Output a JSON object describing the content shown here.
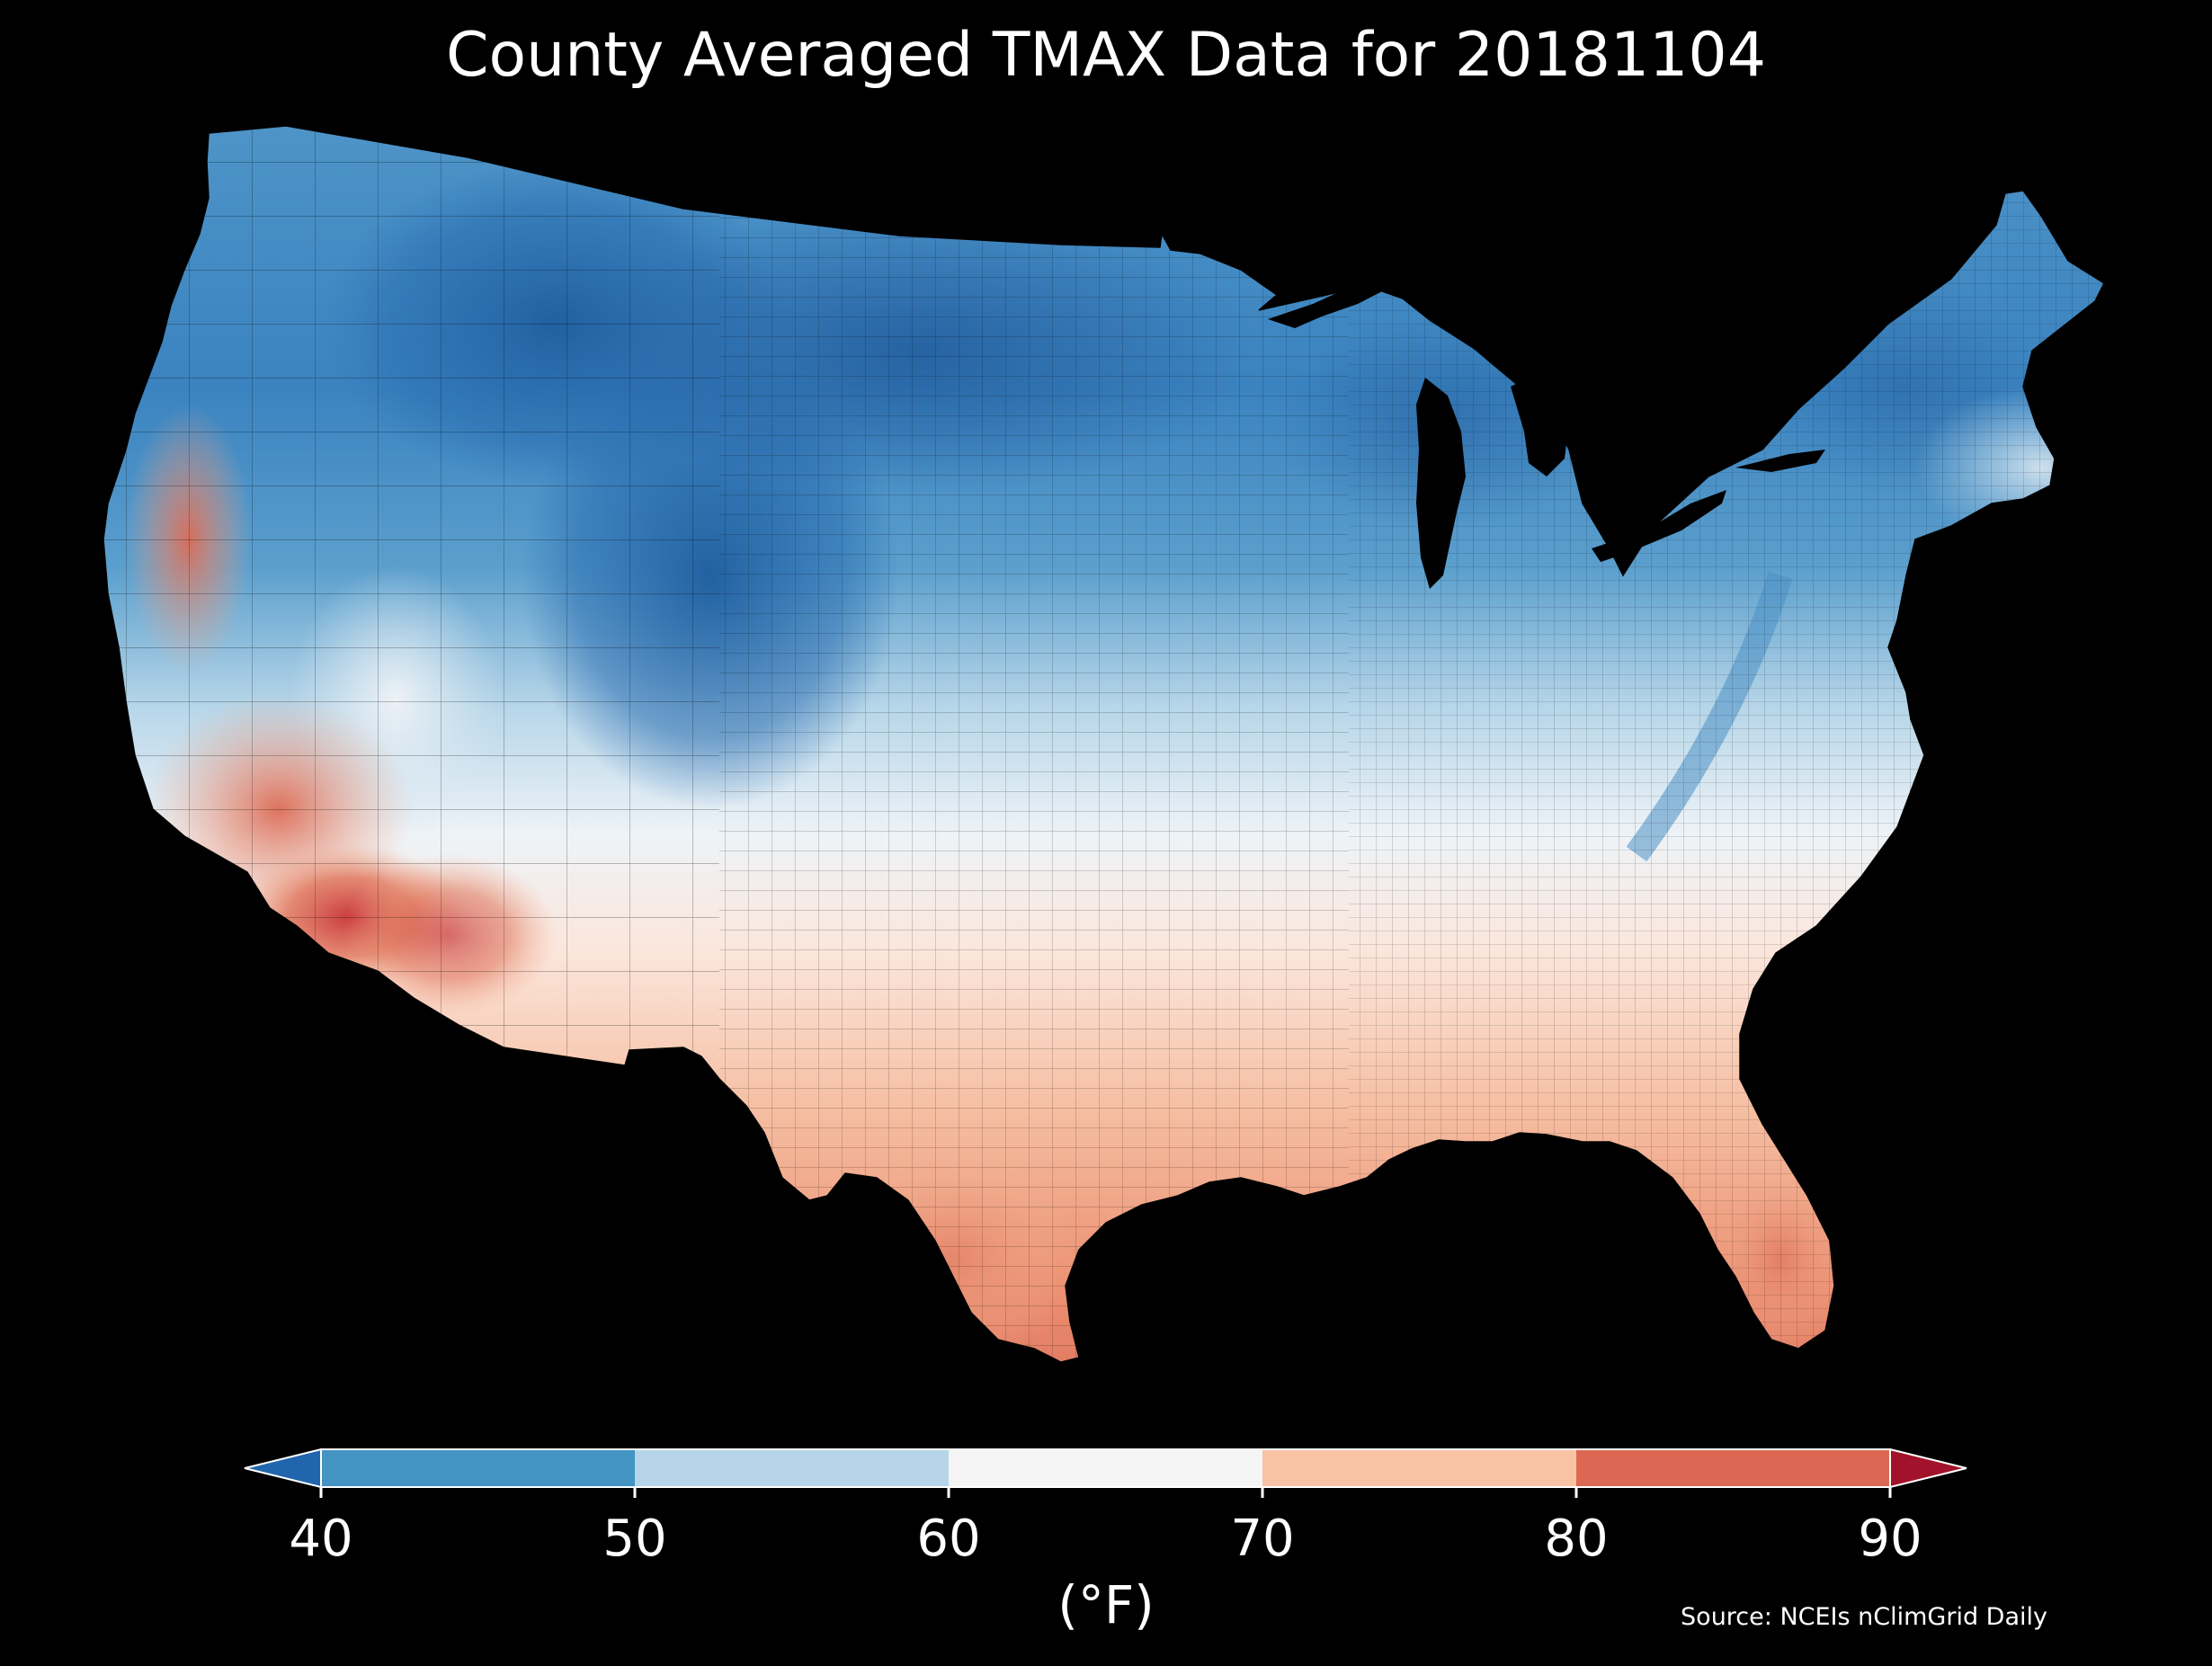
{
  "title": "County Averaged TMAX Data for 20181104",
  "source": "Source: NCEIs nClimGrid Daily",
  "legend": {
    "unit_label": "(°F)",
    "ticks": [
      "40",
      "50",
      "60",
      "70",
      "80",
      "90"
    ],
    "bins": [
      {
        "range": [
          40,
          50
        ],
        "color": "#4393c3"
      },
      {
        "range": [
          50,
          60
        ],
        "color": "#b6d5e8"
      },
      {
        "range": [
          60,
          70
        ],
        "color": "#f5f5f5"
      },
      {
        "range": [
          70,
          80
        ],
        "color": "#f8c2a4"
      },
      {
        "range": [
          80,
          90
        ],
        "color": "#dc6853"
      }
    ],
    "under_color": "#2166ac",
    "over_color": "#a2122a"
  },
  "map": {
    "region": "contiguous United States",
    "units": "counties",
    "colormap": "RdBu_r",
    "value_range": [
      40,
      90
    ],
    "background": "#000000",
    "boundary_color": "#000000"
  }
}
